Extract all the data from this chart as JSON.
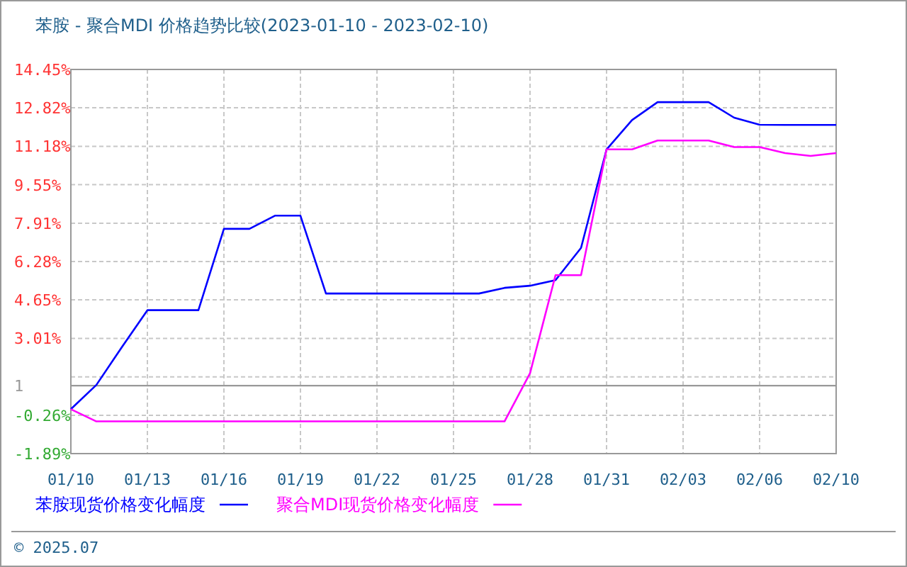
{
  "chart_data": {
    "type": "line",
    "title": "苯胺 - 聚合MDI 价格趋势比较(2023-01-10 - 2023-02-10)",
    "categories": [
      "01/10",
      null,
      null,
      "01/13",
      null,
      null,
      "01/16",
      null,
      null,
      "01/19",
      null,
      null,
      "01/22",
      null,
      null,
      "01/25",
      null,
      null,
      "01/28",
      null,
      null,
      "01/31",
      null,
      null,
      "02/03",
      null,
      null,
      "02/06",
      null,
      null,
      "02/10"
    ],
    "series": [
      {
        "name": "苯胺现货价格变化幅度",
        "color": "#0000ff",
        "values": [
          0,
          1.03,
          2.64,
          4.21,
          4.21,
          4.21,
          7.67,
          7.67,
          8.23,
          8.23,
          4.92,
          4.92,
          4.92,
          4.92,
          4.92,
          4.92,
          4.92,
          5.16,
          5.25,
          5.49,
          6.86,
          11.05,
          12.3,
          13.06,
          13.06,
          13.06,
          12.4,
          12.1,
          12.09,
          12.09,
          12.09
        ]
      },
      {
        "name": "聚合MDI现货价格变化幅度",
        "color": "#ff00ff",
        "values": [
          0,
          -0.52,
          -0.52,
          -0.52,
          -0.52,
          -0.52,
          -0.52,
          -0.52,
          -0.52,
          -0.52,
          -0.52,
          -0.52,
          -0.52,
          -0.52,
          -0.52,
          -0.52,
          -0.52,
          -0.52,
          1.53,
          5.7,
          5.7,
          11.05,
          11.05,
          11.43,
          11.43,
          11.43,
          11.15,
          11.15,
          10.89,
          10.77,
          10.89
        ]
      }
    ],
    "ylim": [
      -1.89,
      14.45
    ],
    "yticks": [
      {
        "value": -1.89,
        "label": "-1.89%"
      },
      {
        "value": -0.26,
        "label": "-0.26%"
      },
      {
        "value": 1.375,
        "label": null
      },
      {
        "value": 3.01,
        "label": "3.01%"
      },
      {
        "value": 4.65,
        "label": "4.65%"
      },
      {
        "value": 6.28,
        "label": "6.28%"
      },
      {
        "value": 7.91,
        "label": "7.91%"
      },
      {
        "value": 9.55,
        "label": "9.55%"
      },
      {
        "value": 11.18,
        "label": "11.18%"
      },
      {
        "value": 12.82,
        "label": "12.82%"
      },
      {
        "value": 14.45,
        "label": "14.45%"
      }
    ],
    "ref_lines": [
      {
        "axis": "y",
        "value": 1,
        "label": "1",
        "color": "#999999"
      }
    ],
    "grid": true,
    "legend": "bottom",
    "annotations": [
      "© 2025.07"
    ]
  }
}
